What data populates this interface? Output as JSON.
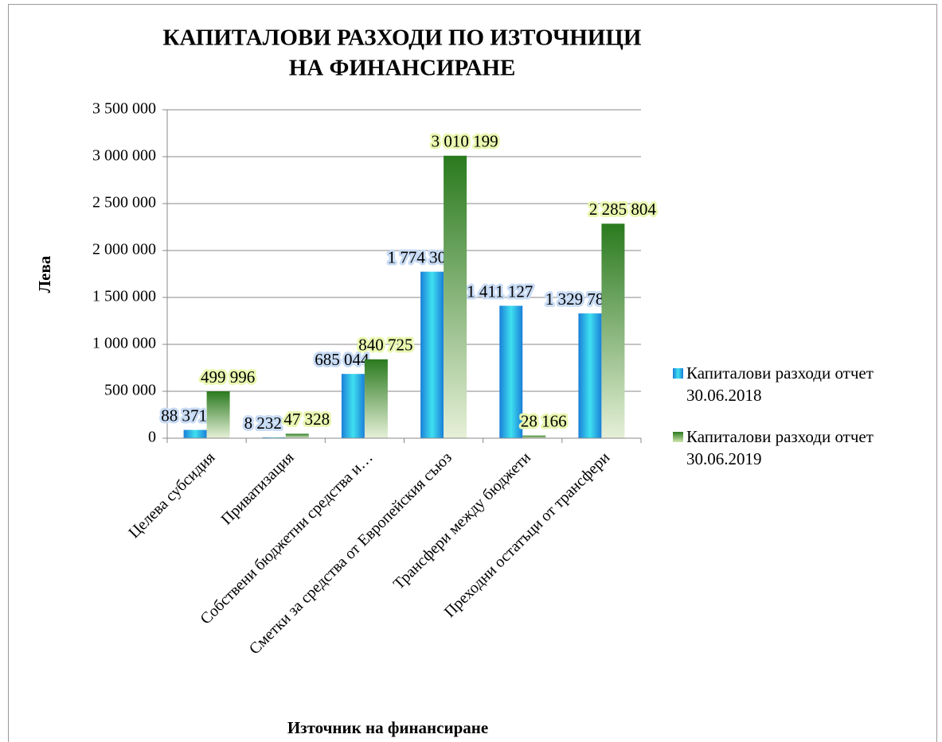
{
  "chart_data": {
    "type": "bar",
    "title": [
      "КАПИТАЛОВИ РАЗХОДИ ПО ИЗТОЧНИЦИ",
      "НА ФИНАНСИРАНЕ"
    ],
    "y_label": "Лева",
    "x_label": "Източник на финансиране",
    "categories": [
      "Целева субсидия",
      "Приватизация",
      "Собствени бюджетни средства и…",
      "Сметки за средства от Европейския съюз",
      "Трансфери между бюджети",
      "Преходни остатъци от трансфери"
    ],
    "series": [
      {
        "name": "Капиталови разходи отчет 30.06.2018",
        "color": "#1a7fd8",
        "values": [
          88371,
          8232,
          685044,
          1774308,
          1411127,
          1329789
        ],
        "value_labels": [
          "88 371",
          "8 232",
          "685 044",
          "1 774 308",
          "1 411 127",
          "1 329 789"
        ]
      },
      {
        "name": "Капиталови разходи отчет 30.06.2019",
        "color": "#2a7a1e",
        "values": [
          499996,
          47328,
          840725,
          3010199,
          28166,
          2285804
        ],
        "value_labels": [
          "499 996",
          "47 328",
          "840 725",
          "3 010 199",
          "28 166",
          "2 285 804"
        ]
      }
    ],
    "ylim": [
      0,
      3500000
    ],
    "yticks": [
      0,
      {
        "value": 500000,
        "label": "500 000"
      },
      {
        "value": 1000000,
        "label": "1 000 000"
      },
      {
        "value": 1500000,
        "label": "1 500 000"
      },
      {
        "value": 2000000,
        "label": "2 000 000"
      },
      {
        "value": 2500000,
        "label": "2 500 000"
      },
      {
        "value": 3000000,
        "label": "3 000 000"
      },
      {
        "value": 3500000,
        "label": "3 500 000"
      }
    ],
    "grid": true,
    "legend": "right"
  }
}
